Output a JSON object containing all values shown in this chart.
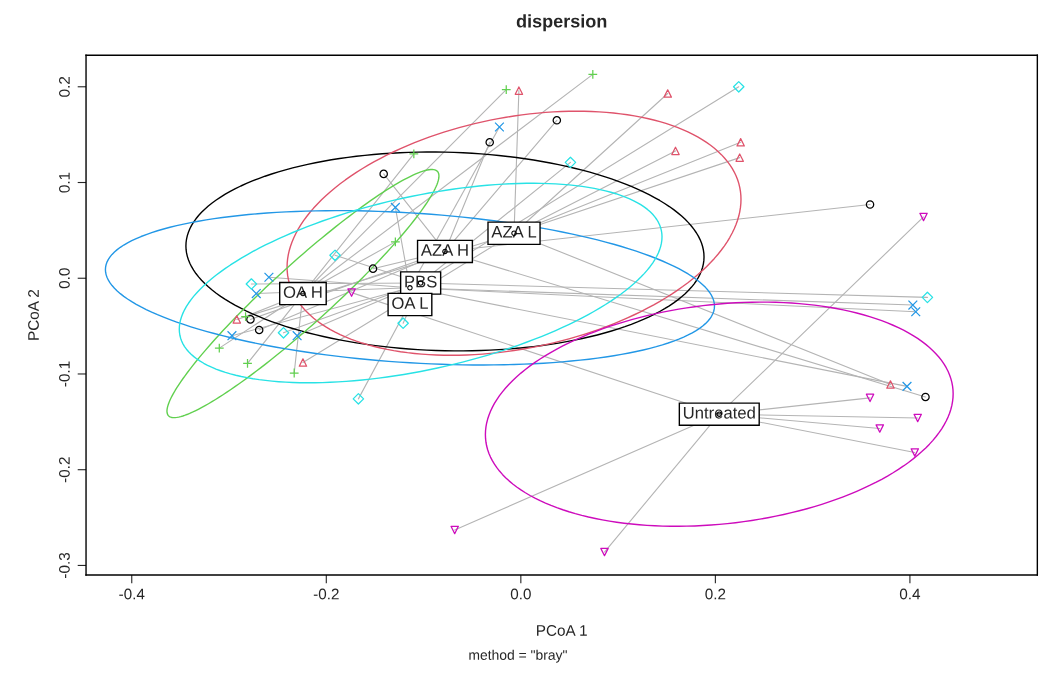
{
  "chart_data": {
    "type": "scatter",
    "title": "dispersion",
    "xlabel": "PCoA 1",
    "ylabel": "PCoA 2",
    "xlim": [
      -0.447,
      0.531
    ],
    "ylim": [
      -0.31,
      0.233
    ],
    "xticks": [
      -0.4,
      -0.2,
      {
        "value": 0,
        "label": "0.0"
      },
      0.2,
      0.4
    ],
    "yticks": [
      -0.3,
      -0.2,
      -0.1,
      {
        "value": 0,
        "label": "0.0"
      },
      0.1,
      0.2
    ],
    "grid": false,
    "legend": false,
    "annotations": [
      "method = \"bray\""
    ],
    "series": [
      {
        "marker": "circle",
        "color": "#000000",
        "x": [
          -0.078,
          -0.007,
          -0.224,
          -0.114,
          -0.103,
          0.204
        ],
        "values": [
          0.028,
          0.047,
          -0.016,
          -0.01,
          -0.005,
          -0.142
        ],
        "value_labels": [
          "AZA H",
          "AZA L",
          "OA H",
          "OA L",
          "PBS",
          "Untreated"
        ]
      },
      {
        "type": "scatter",
        "marker": "circle",
        "color": "#000000",
        "x": [
          -0.141,
          -0.032,
          0.037,
          0.359,
          -0.152,
          -0.278,
          -0.269,
          0.416
        ],
        "values": [
          0.109,
          0.142,
          0.165,
          0.077,
          0.01,
          -0.043,
          -0.054,
          -0.124
        ]
      },
      {
        "type": "scatter",
        "marker": "triangle",
        "color": "#DF536B",
        "x": [
          -0.002,
          0.151,
          0.226,
          0.225,
          0.159,
          -0.292,
          -0.224,
          0.38
        ],
        "values": [
          0.196,
          0.193,
          0.142,
          0.126,
          0.133,
          -0.043,
          -0.088,
          -0.111
        ]
      },
      {
        "type": "scatter",
        "marker": "plus",
        "color": "#61D04F",
        "x": [
          -0.015,
          0.074,
          -0.11,
          -0.129,
          -0.283,
          -0.31,
          -0.281,
          -0.233
        ],
        "values": [
          0.197,
          0.213,
          0.13,
          0.038,
          -0.04,
          -0.073,
          -0.089,
          -0.099
        ]
      },
      {
        "type": "scatter",
        "marker": "cross",
        "color": "#2297E6",
        "x": [
          -0.022,
          -0.129,
          -0.259,
          -0.272,
          -0.297,
          -0.23,
          0.403,
          0.406,
          0.397
        ],
        "values": [
          0.158,
          0.074,
          0.001,
          -0.016,
          -0.06,
          -0.06,
          -0.028,
          -0.035,
          -0.113
        ]
      },
      {
        "type": "scatter",
        "marker": "diamond",
        "color": "#28E2E5",
        "x": [
          0.224,
          0.051,
          -0.191,
          -0.277,
          -0.244,
          -0.121,
          -0.167,
          0.418
        ],
        "values": [
          0.2,
          0.121,
          0.024,
          -0.006,
          -0.057,
          -0.047,
          -0.126,
          -0.02
        ]
      },
      {
        "type": "scatter",
        "marker": "triangle_down",
        "color": "#CD0BBC",
        "x": [
          -0.174,
          0.414,
          0.359,
          0.408,
          0.369,
          0.405,
          -0.068,
          0.086
        ],
        "values": [
          -0.015,
          0.064,
          -0.125,
          -0.146,
          -0.157,
          -0.182,
          -0.263,
          -0.286
        ]
      }
    ]
  }
}
